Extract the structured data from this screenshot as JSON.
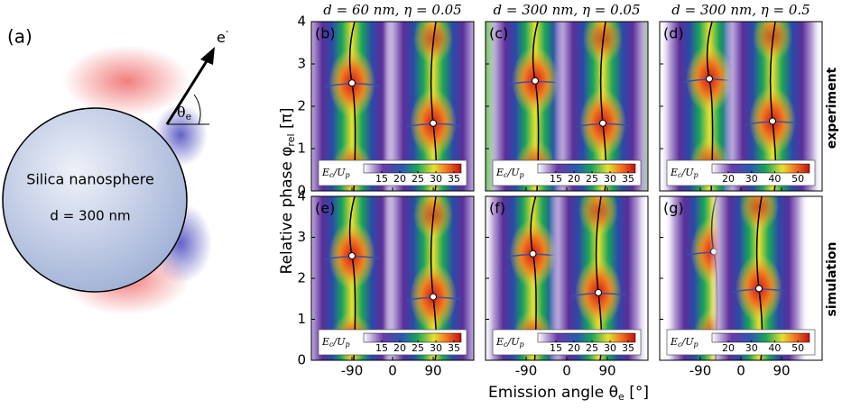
{
  "panel_a": {
    "label": "(a)",
    "electron": "e",
    "electron_sup": "-",
    "angle": "θ",
    "angle_sub": "e",
    "sphere_title": "Silica nanosphere",
    "sphere_size": "d = 300 nm"
  },
  "column_titles": [
    "d = 60 nm, η = 0.05",
    "d = 300 nm, η = 0.05",
    "d = 300 nm, η = 0.5"
  ],
  "row_labels": [
    "experiment",
    "simulation"
  ],
  "y_axis": {
    "label": "Relative phase φ",
    "label_sub": "rel",
    "label_unit": " [π]",
    "ylim": [
      0,
      4
    ],
    "yticks": [
      0,
      1,
      2,
      3,
      4
    ]
  },
  "x_axis": {
    "label": "Emission angle θ",
    "label_sub": "e",
    "label_unit": " [°]",
    "xlim": [
      -180,
      180
    ],
    "xticks": [
      -90,
      0,
      90
    ]
  },
  "colorbar_label": {
    "main": "E",
    "main_sub": "c",
    "sep": "/",
    "over": "U",
    "over_sub": "p"
  },
  "panels": [
    {
      "label": "(b)",
      "colorbar": {
        "lim": [
          10,
          37
        ],
        "ticks": [
          15,
          20,
          25,
          30,
          35
        ]
      },
      "maxima": [
        [
          -90,
          2.55
        ],
        [
          90,
          1.6
        ]
      ]
    },
    {
      "label": "(c)",
      "colorbar": {
        "lim": [
          10,
          37
        ],
        "ticks": [
          15,
          20,
          25,
          30,
          35
        ]
      },
      "maxima": [
        [
          -70,
          2.6
        ],
        [
          80,
          1.6
        ]
      ]
    },
    {
      "label": "(d)",
      "colorbar": {
        "lim": [
          13,
          55
        ],
        "ticks": [
          20,
          30,
          40,
          50
        ]
      },
      "maxima": [
        [
          -70,
          2.65
        ],
        [
          70,
          1.65
        ]
      ]
    },
    {
      "label": "(e)",
      "colorbar": {
        "lim": [
          10,
          37
        ],
        "ticks": [
          15,
          20,
          25,
          30,
          35
        ]
      },
      "maxima": [
        [
          -90,
          2.55
        ],
        [
          90,
          1.55
        ]
      ]
    },
    {
      "label": "(f)",
      "colorbar": {
        "lim": [
          10,
          37
        ],
        "ticks": [
          15,
          20,
          25,
          30,
          35
        ]
      },
      "maxima": [
        [
          -75,
          2.6
        ],
        [
          70,
          1.65
        ]
      ]
    },
    {
      "label": "(g)",
      "colorbar": {
        "lim": [
          13,
          55
        ],
        "ticks": [
          20,
          30,
          40,
          50
        ]
      },
      "maxima": [
        [
          -60,
          2.65
        ],
        [
          40,
          1.75
        ]
      ]
    }
  ]
}
